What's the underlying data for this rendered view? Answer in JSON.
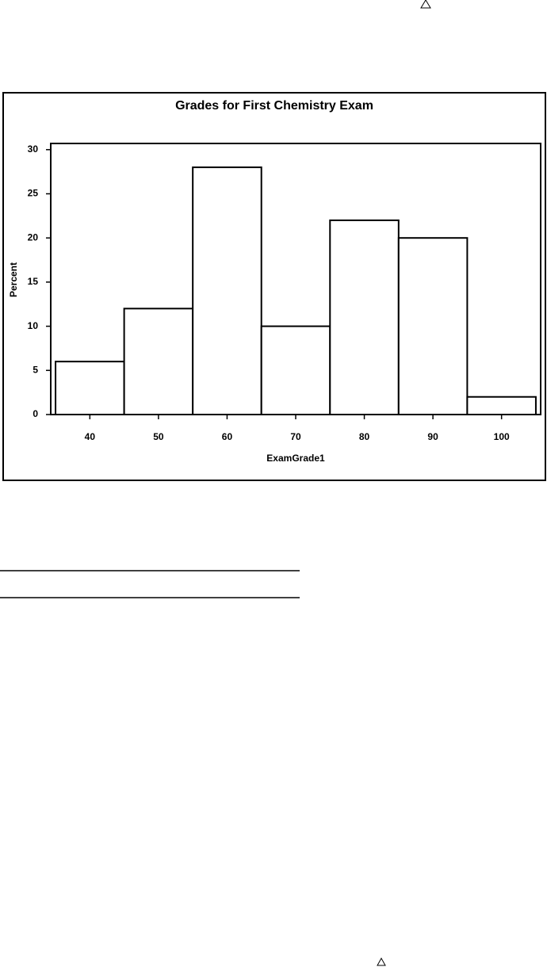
{
  "chart_data": {
    "type": "histogram",
    "title": "Grades for First Chemistry Exam",
    "x_label": "ExamGrade1",
    "y_label": "Percent",
    "bins": [
      35,
      45,
      55,
      65,
      75,
      85,
      95,
      105
    ],
    "values": [
      6,
      12,
      28,
      10,
      22,
      20,
      2
    ],
    "color": "#ffffff",
    "xlim": [
      34.3,
      105.7
    ],
    "xticks": [
      40,
      50,
      60,
      70,
      80,
      90,
      100
    ],
    "ylim": [
      0,
      30.7
    ],
    "yticks": [
      0,
      5,
      10,
      15,
      20,
      25,
      30
    ]
  }
}
